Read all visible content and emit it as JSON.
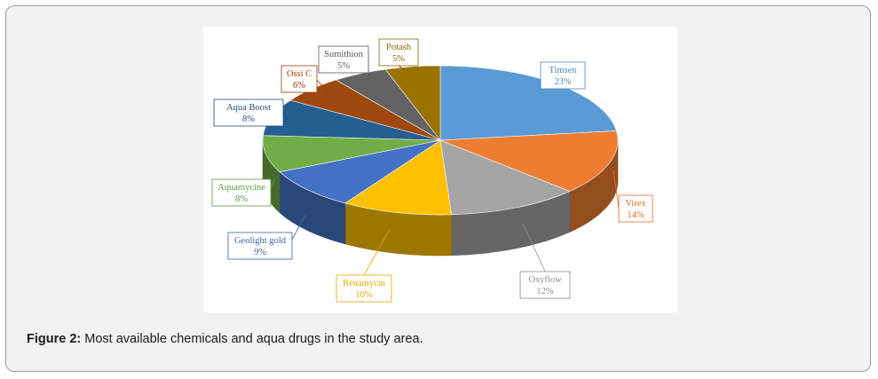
{
  "caption": {
    "label": "Figure 2:",
    "text": "Most available chemicals and aqua drugs in the study area."
  },
  "chart_data": {
    "type": "pie",
    "title": "",
    "style": "3d-exploded",
    "legend": "none (callout labels)",
    "categories": [
      "Timsen",
      "Virex",
      "Oxyflow",
      "Renamycin",
      "Geolight gold",
      "Aquamycine",
      "Aqua Boost",
      "Ossi C",
      "Sumithion",
      "Potash"
    ],
    "values": [
      23,
      14,
      12,
      10,
      9,
      8,
      8,
      6,
      5,
      5
    ],
    "labels": [
      "23%",
      "14%",
      "12%",
      "10%",
      "9%",
      "8%",
      "8%",
      "6%",
      "5%",
      "5%"
    ],
    "colors": [
      "#5b9bd5",
      "#ed7d31",
      "#a5a5a5",
      "#ffc000",
      "#4472c4",
      "#70ad47",
      "#255e91",
      "#9e480e",
      "#636363",
      "#997300"
    ],
    "label_colors": [
      "#4a86c5",
      "#e46c1c",
      "#8c8c8c",
      "#e0a800",
      "#3b63b0",
      "#5e9a3a",
      "#1f4e79",
      "#a33b00",
      "#595959",
      "#8a6500"
    ]
  }
}
